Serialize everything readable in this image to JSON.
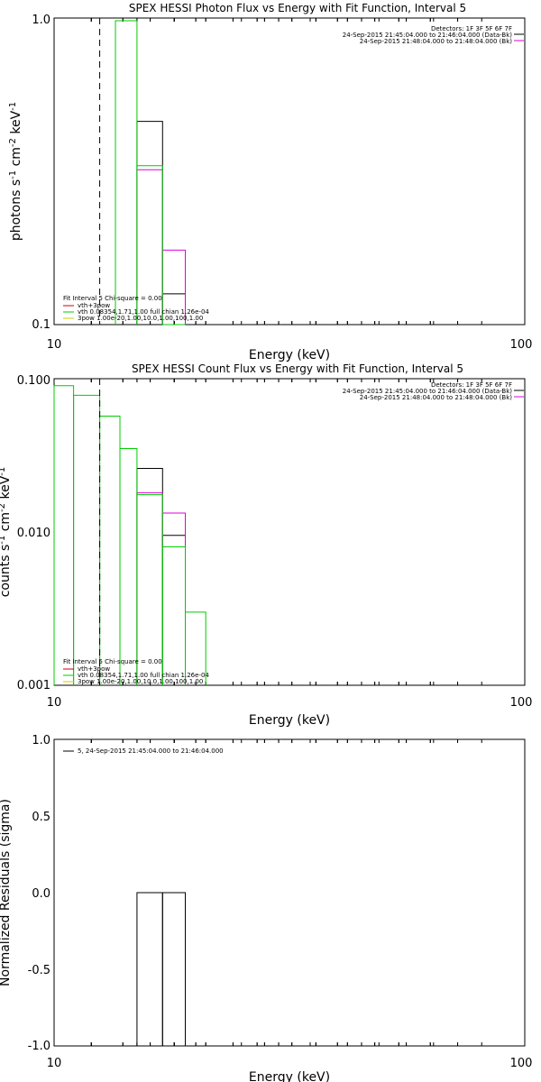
{
  "chart_data": [
    {
      "type": "line",
      "title": "SPEX HESSI Photon Flux vs Energy with Fit Function, Interval 5",
      "xlabel": "Energy (keV)",
      "ylabel": "photons s-1 cm-2 keV-1",
      "xscale": "log",
      "yscale": "log",
      "xlim": [
        10,
        100
      ],
      "ylim": [
        0.1,
        1.0
      ],
      "x_ticks": [
        "10",
        "100"
      ],
      "y_ticks": [
        "1.0",
        "0.1"
      ],
      "info": [
        "Detectors: 1F 3F 5F 6F 7F",
        "24-Sep-2015 21:45:04.000 to 21:46:04.000 (Data-Bk)",
        "24-Sep-2015 21:48:04.000 to 21:48:04.000 (Bk)"
      ],
      "fit_info": "Fit Interval 5   Chi-square = 0.00",
      "legend": [
        {
          "name": "vth+3pow",
          "color": "#cc0000"
        },
        {
          "name": "vth 0.08354,1.71,1.00  full chian 1.26e-04",
          "color": "#00cc00"
        },
        {
          "name": "3pow 1.00e-20,1.00,10.0,1.00,100,1.00",
          "color": "#cccc00"
        }
      ],
      "vline_x": 12.5,
      "series": [
        {
          "color": "#000000",
          "steps": [
            [
              15,
              17,
              0.46
            ],
            [
              17,
              19,
              0.126
            ]
          ]
        },
        {
          "color": "#dd00dd",
          "steps": [
            [
              15,
              17,
              0.32
            ],
            [
              17,
              19,
              0.175
            ]
          ]
        },
        {
          "color": "#00cc00",
          "steps": [
            [
              13.5,
              15,
              0.98
            ],
            [
              15,
              17,
              0.33
            ],
            [
              17,
              19,
              0.1
            ]
          ]
        }
      ]
    },
    {
      "type": "line",
      "title": "SPEX HESSI Count Flux vs Energy with Fit Function, Interval 5",
      "xlabel": "Energy (keV)",
      "ylabel": "counts s-1 cm-2 keV-1",
      "xscale": "log",
      "yscale": "log",
      "xlim": [
        10,
        100
      ],
      "ylim": [
        0.001,
        0.1
      ],
      "x_ticks": [
        "10",
        "100"
      ],
      "y_ticks": [
        "0.100",
        "0.010",
        "0.001"
      ],
      "info": [
        "Detectors: 1F 3F 5F 6F 7F",
        "24-Sep-2015 21:45:04.000 to 21:46:04.000 (Data-Bk)",
        "24-Sep-2015 21:48:04.000 to 21:48:04.000 (Bk)"
      ],
      "fit_info": "Fit Interval 5   Chi-square = 0.00",
      "legend": [
        {
          "name": "vth+3pow",
          "color": "#cc0000"
        },
        {
          "name": "vth 0.08354,1.71,1.00  full chian 1.26e-04",
          "color": "#00cc00"
        },
        {
          "name": "3pow 1.00e-20,1.00,10.0,1.00,100,1.00",
          "color": "#cccc00"
        }
      ],
      "vline_x": 12.5,
      "series": [
        {
          "color": "#000000",
          "steps": [
            [
              15,
              17,
              0.026
            ],
            [
              17,
              19,
              0.0095
            ]
          ]
        },
        {
          "color": "#dd00dd",
          "steps": [
            [
              15,
              17,
              0.018
            ],
            [
              17,
              19,
              0.0133
            ]
          ]
        },
        {
          "color": "#00cc00",
          "steps": [
            [
              10,
              11,
              0.09
            ],
            [
              11,
              12.5,
              0.078
            ],
            [
              12.5,
              13.8,
              0.057
            ],
            [
              13.8,
              15,
              0.035
            ],
            [
              15,
              17,
              0.0175
            ],
            [
              17,
              19,
              0.008
            ],
            [
              19,
              21,
              0.003
            ]
          ]
        }
      ]
    },
    {
      "type": "line",
      "title": "",
      "xlabel": "Energy (keV)",
      "ylabel": "Normalized Residuals (sigma)",
      "xscale": "log",
      "yscale": "linear",
      "xlim": [
        10,
        100
      ],
      "ylim": [
        -1.0,
        1.0
      ],
      "x_ticks": [
        "10",
        "100"
      ],
      "y_ticks": [
        "1.0",
        "0.5",
        "0.0",
        "-0.5",
        "-1.0"
      ],
      "legend": [
        {
          "name": "5, 24-Sep-2015 21:45:04.000 to 21:46:04.000",
          "color": "#000000"
        }
      ],
      "series": [
        {
          "color": "#000000",
          "steps": [
            [
              15,
              17,
              0.0
            ],
            [
              17,
              19,
              0.0
            ]
          ]
        }
      ]
    }
  ]
}
